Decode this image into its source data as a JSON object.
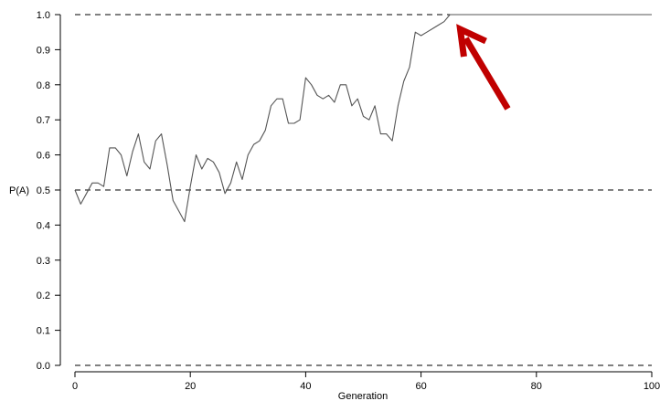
{
  "chart_data": {
    "type": "line",
    "xlabel": "Generation",
    "ylabel": "P(A)",
    "xlim": [
      0,
      100
    ],
    "ylim": [
      0,
      1
    ],
    "x_ticks": [
      0,
      20,
      40,
      60,
      80,
      100
    ],
    "y_ticks": [
      0.0,
      0.1,
      0.2,
      0.3,
      0.4,
      0.5,
      0.6,
      0.7,
      0.8,
      0.9,
      1.0
    ],
    "x_tick_labels": [
      "0",
      "20",
      "40",
      "60",
      "80",
      "100"
    ],
    "y_tick_labels": [
      "0.0",
      "0.1",
      "0.2",
      "0.3",
      "0.4",
      "0.5",
      "0.6",
      "0.7",
      "0.8",
      "0.9",
      "1.0"
    ],
    "reference_lines": [
      0,
      0.5,
      1.0
    ],
    "grid": false,
    "line_color": "#555555",
    "reference_line_color": "#000000",
    "annotation": {
      "type": "arrow",
      "color": "#c00000",
      "points_to": {
        "x": 66,
        "y": 1.0
      }
    },
    "series": [
      {
        "x": [
          0,
          1,
          2,
          3,
          4,
          5,
          6,
          7,
          8,
          9,
          10,
          11,
          12,
          13,
          14,
          15,
          16,
          17,
          18,
          19,
          20,
          21,
          22,
          23,
          24,
          25,
          26,
          27,
          28,
          29,
          30,
          31,
          32,
          33,
          34,
          35,
          36,
          37,
          38,
          39,
          40,
          41,
          42,
          43,
          44,
          45,
          46,
          47,
          48,
          49,
          50,
          51,
          52,
          53,
          54,
          55,
          56,
          57,
          58,
          59,
          60,
          61,
          62,
          63,
          64,
          65,
          66,
          67,
          68,
          69,
          70,
          71,
          72,
          73,
          74,
          75,
          76,
          77,
          78,
          79,
          80,
          81,
          82,
          83,
          84,
          85,
          86,
          87,
          88,
          89,
          90,
          91,
          92,
          93,
          94,
          95,
          96,
          97,
          98,
          99,
          100
        ],
        "y": [
          0.5,
          0.46,
          0.49,
          0.52,
          0.52,
          0.51,
          0.62,
          0.62,
          0.6,
          0.54,
          0.61,
          0.66,
          0.58,
          0.56,
          0.64,
          0.66,
          0.57,
          0.47,
          0.44,
          0.41,
          0.51,
          0.6,
          0.56,
          0.59,
          0.58,
          0.55,
          0.49,
          0.52,
          0.58,
          0.53,
          0.6,
          0.63,
          0.64,
          0.67,
          0.74,
          0.76,
          0.76,
          0.69,
          0.69,
          0.7,
          0.82,
          0.8,
          0.77,
          0.76,
          0.77,
          0.75,
          0.8,
          0.8,
          0.74,
          0.76,
          0.71,
          0.7,
          0.74,
          0.66,
          0.66,
          0.64,
          0.74,
          0.81,
          0.85,
          0.95,
          0.94,
          0.95,
          0.96,
          0.97,
          0.98,
          1.0,
          1.0,
          1.0,
          1.0,
          1.0,
          1.0,
          1.0,
          1.0,
          1.0,
          1.0,
          1.0,
          1.0,
          1.0,
          1.0,
          1.0,
          1.0,
          1.0,
          1.0,
          1.0,
          1.0,
          1.0,
          1.0,
          1.0,
          1.0,
          1.0,
          1.0,
          1.0,
          1.0,
          1.0,
          1.0,
          1.0,
          1.0,
          1.0,
          1.0,
          1.0,
          1.0
        ]
      }
    ]
  }
}
